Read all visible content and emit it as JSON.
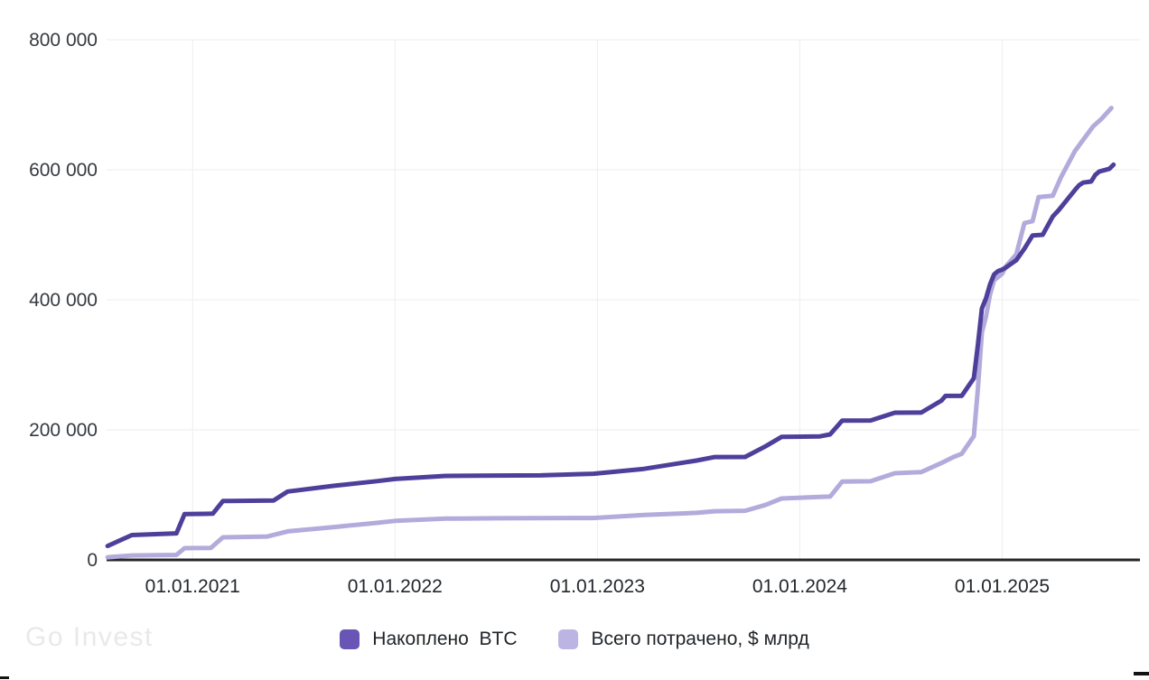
{
  "watermark": {
    "text": "Go Invest"
  },
  "chart_data": {
    "type": "line",
    "title": "",
    "xlabel": "",
    "ylabel": "",
    "grid": true,
    "legend_position": "bottom-center",
    "x_range": [
      2020.575,
      2025.605
    ],
    "y_range": [
      0,
      800000
    ],
    "x_ticks": [
      {
        "value": 2021,
        "label": "01.01.2021"
      },
      {
        "value": 2022,
        "label": "01.01.2022"
      },
      {
        "value": 2023,
        "label": "01.01.2023"
      },
      {
        "value": 2024,
        "label": "01.01.2024"
      },
      {
        "value": 2025,
        "label": "01.01.2025"
      }
    ],
    "y_ticks": [
      {
        "value": 0,
        "label": "0"
      },
      {
        "value": 200000,
        "label": "200 000"
      },
      {
        "value": 400000,
        "label": "400 000"
      },
      {
        "value": 600000,
        "label": "600 000"
      },
      {
        "value": 800000,
        "label": "800 000"
      }
    ],
    "series": [
      {
        "id": "btc",
        "name": "Накоплено  BTC",
        "color": "#4F3F9B",
        "swatch": "#6955B4",
        "points": [
          [
            2020.58,
            21454
          ],
          [
            2020.7,
            38250
          ],
          [
            2020.92,
            40824
          ],
          [
            2020.96,
            70470
          ],
          [
            2021.06,
            70784
          ],
          [
            2021.1,
            71079
          ],
          [
            2021.15,
            90531
          ],
          [
            2021.4,
            91326
          ],
          [
            2021.47,
            105085
          ],
          [
            2021.7,
            114042
          ],
          [
            2021.91,
            121044
          ],
          [
            2022.0,
            124391
          ],
          [
            2022.25,
            129218
          ],
          [
            2022.49,
            129699
          ],
          [
            2022.72,
            130000
          ],
          [
            2022.98,
            132500
          ],
          [
            2023.23,
            140000
          ],
          [
            2023.49,
            152800
          ],
          [
            2023.58,
            158245
          ],
          [
            2023.73,
            158400
          ],
          [
            2023.83,
            174530
          ],
          [
            2023.91,
            189150
          ],
          [
            2024.1,
            190000
          ],
          [
            2024.15,
            193000
          ],
          [
            2024.21,
            214246
          ],
          [
            2024.35,
            214400
          ],
          [
            2024.47,
            226331
          ],
          [
            2024.6,
            226500
          ],
          [
            2024.7,
            245000
          ],
          [
            2024.72,
            252220
          ],
          [
            2024.8,
            252220
          ],
          [
            2024.86,
            279420
          ],
          [
            2024.88,
            331200
          ],
          [
            2024.9,
            386700
          ],
          [
            2024.92,
            402100
          ],
          [
            2024.94,
            423650
          ],
          [
            2024.96,
            439000
          ],
          [
            2024.98,
            444262
          ],
          [
            2025.0,
            446400
          ],
          [
            2025.02,
            450000
          ],
          [
            2025.07,
            461000
          ],
          [
            2025.11,
            478740
          ],
          [
            2025.15,
            499096
          ],
          [
            2025.2,
            500000
          ],
          [
            2025.25,
            528185
          ],
          [
            2025.28,
            538200
          ],
          [
            2025.32,
            553555
          ],
          [
            2025.36,
            569000
          ],
          [
            2025.38,
            576230
          ],
          [
            2025.4,
            580250
          ],
          [
            2025.44,
            582000
          ],
          [
            2025.46,
            592100
          ],
          [
            2025.48,
            597325
          ],
          [
            2025.53,
            601550
          ],
          [
            2025.55,
            607770
          ]
        ]
      },
      {
        "id": "spent",
        "name": "Всего потрачено, $ млрд",
        "color": "#B2ABDB",
        "swatch": "#BCB5E3",
        "points": [
          [
            2020.58,
            4000
          ],
          [
            2020.7,
            6800
          ],
          [
            2020.92,
            7600
          ],
          [
            2020.96,
            18000
          ],
          [
            2021.09,
            18500
          ],
          [
            2021.15,
            34700
          ],
          [
            2021.37,
            36000
          ],
          [
            2021.47,
            43900
          ],
          [
            2021.7,
            50600
          ],
          [
            2021.91,
            57000
          ],
          [
            2022.0,
            60000
          ],
          [
            2022.25,
            63500
          ],
          [
            2022.5,
            64000
          ],
          [
            2022.98,
            64500
          ],
          [
            2023.23,
            69000
          ],
          [
            2023.49,
            72300
          ],
          [
            2023.58,
            74900
          ],
          [
            2023.73,
            75500
          ],
          [
            2023.83,
            84500
          ],
          [
            2023.91,
            94400
          ],
          [
            2024.1,
            97000
          ],
          [
            2024.15,
            97400
          ],
          [
            2024.21,
            120500
          ],
          [
            2024.35,
            121000
          ],
          [
            2024.47,
            133300
          ],
          [
            2024.6,
            135000
          ],
          [
            2024.7,
            149000
          ],
          [
            2024.76,
            158400
          ],
          [
            2024.8,
            163000
          ],
          [
            2024.86,
            190400
          ],
          [
            2024.88,
            264000
          ],
          [
            2024.9,
            350000
          ],
          [
            2024.92,
            374000
          ],
          [
            2024.94,
            408000
          ],
          [
            2024.96,
            430000
          ],
          [
            2025.0,
            440000
          ],
          [
            2025.02,
            452000
          ],
          [
            2025.07,
            470000
          ],
          [
            2025.11,
            518000
          ],
          [
            2025.15,
            521000
          ],
          [
            2025.18,
            558000
          ],
          [
            2025.25,
            560000
          ],
          [
            2025.29,
            588000
          ],
          [
            2025.36,
            629000
          ],
          [
            2025.4,
            646000
          ],
          [
            2025.45,
            667000
          ],
          [
            2025.49,
            678000
          ],
          [
            2025.54,
            695000
          ]
        ]
      }
    ]
  }
}
